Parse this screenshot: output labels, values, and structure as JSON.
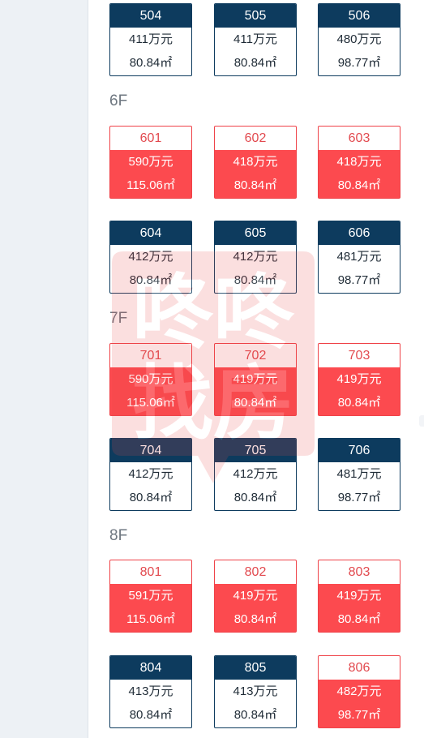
{
  "floors": [
    {
      "label": "",
      "rows": [
        [
          {
            "room": "504",
            "price": "411万元",
            "area": "80.84㎡",
            "status": "available"
          },
          {
            "room": "505",
            "price": "411万元",
            "area": "80.84㎡",
            "status": "available"
          },
          {
            "room": "506",
            "price": "480万元",
            "area": "98.77㎡",
            "status": "available"
          }
        ]
      ]
    },
    {
      "label": "6F",
      "rows": [
        [
          {
            "room": "601",
            "price": "590万元",
            "area": "115.06㎡",
            "status": "sold"
          },
          {
            "room": "602",
            "price": "418万元",
            "area": "80.84㎡",
            "status": "sold"
          },
          {
            "room": "603",
            "price": "418万元",
            "area": "80.84㎡",
            "status": "sold"
          }
        ],
        [
          {
            "room": "604",
            "price": "412万元",
            "area": "80.84㎡",
            "status": "available"
          },
          {
            "room": "605",
            "price": "412万元",
            "area": "80.84㎡",
            "status": "available"
          },
          {
            "room": "606",
            "price": "481万元",
            "area": "98.77㎡",
            "status": "available"
          }
        ]
      ]
    },
    {
      "label": "7F",
      "rows": [
        [
          {
            "room": "701",
            "price": "590万元",
            "area": "115.06㎡",
            "status": "sold"
          },
          {
            "room": "702",
            "price": "419万元",
            "area": "80.84㎡",
            "status": "sold"
          },
          {
            "room": "703",
            "price": "419万元",
            "area": "80.84㎡",
            "status": "sold"
          }
        ],
        [
          {
            "room": "704",
            "price": "412万元",
            "area": "80.84㎡",
            "status": "available"
          },
          {
            "room": "705",
            "price": "412万元",
            "area": "80.84㎡",
            "status": "available"
          },
          {
            "room": "706",
            "price": "481万元",
            "area": "98.77㎡",
            "status": "available"
          }
        ]
      ]
    },
    {
      "label": "8F",
      "rows": [
        [
          {
            "room": "801",
            "price": "591万元",
            "area": "115.06㎡",
            "status": "sold"
          },
          {
            "room": "802",
            "price": "419万元",
            "area": "80.84㎡",
            "status": "sold"
          },
          {
            "room": "803",
            "price": "419万元",
            "area": "80.84㎡",
            "status": "sold"
          }
        ],
        [
          {
            "room": "804",
            "price": "413万元",
            "area": "80.84㎡",
            "status": "available"
          },
          {
            "room": "805",
            "price": "413万元",
            "area": "80.84㎡",
            "status": "available"
          },
          {
            "room": "806",
            "price": "482万元",
            "area": "98.77㎡",
            "status": "sold"
          }
        ]
      ]
    }
  ],
  "watermark": {
    "text": [
      "咚咚",
      "找房"
    ],
    "color": "#e84848"
  },
  "colors": {
    "available_header": "#0d3b5e",
    "sold_fill": "#fc4a4f",
    "sold_header_text": "#e24a4f"
  }
}
